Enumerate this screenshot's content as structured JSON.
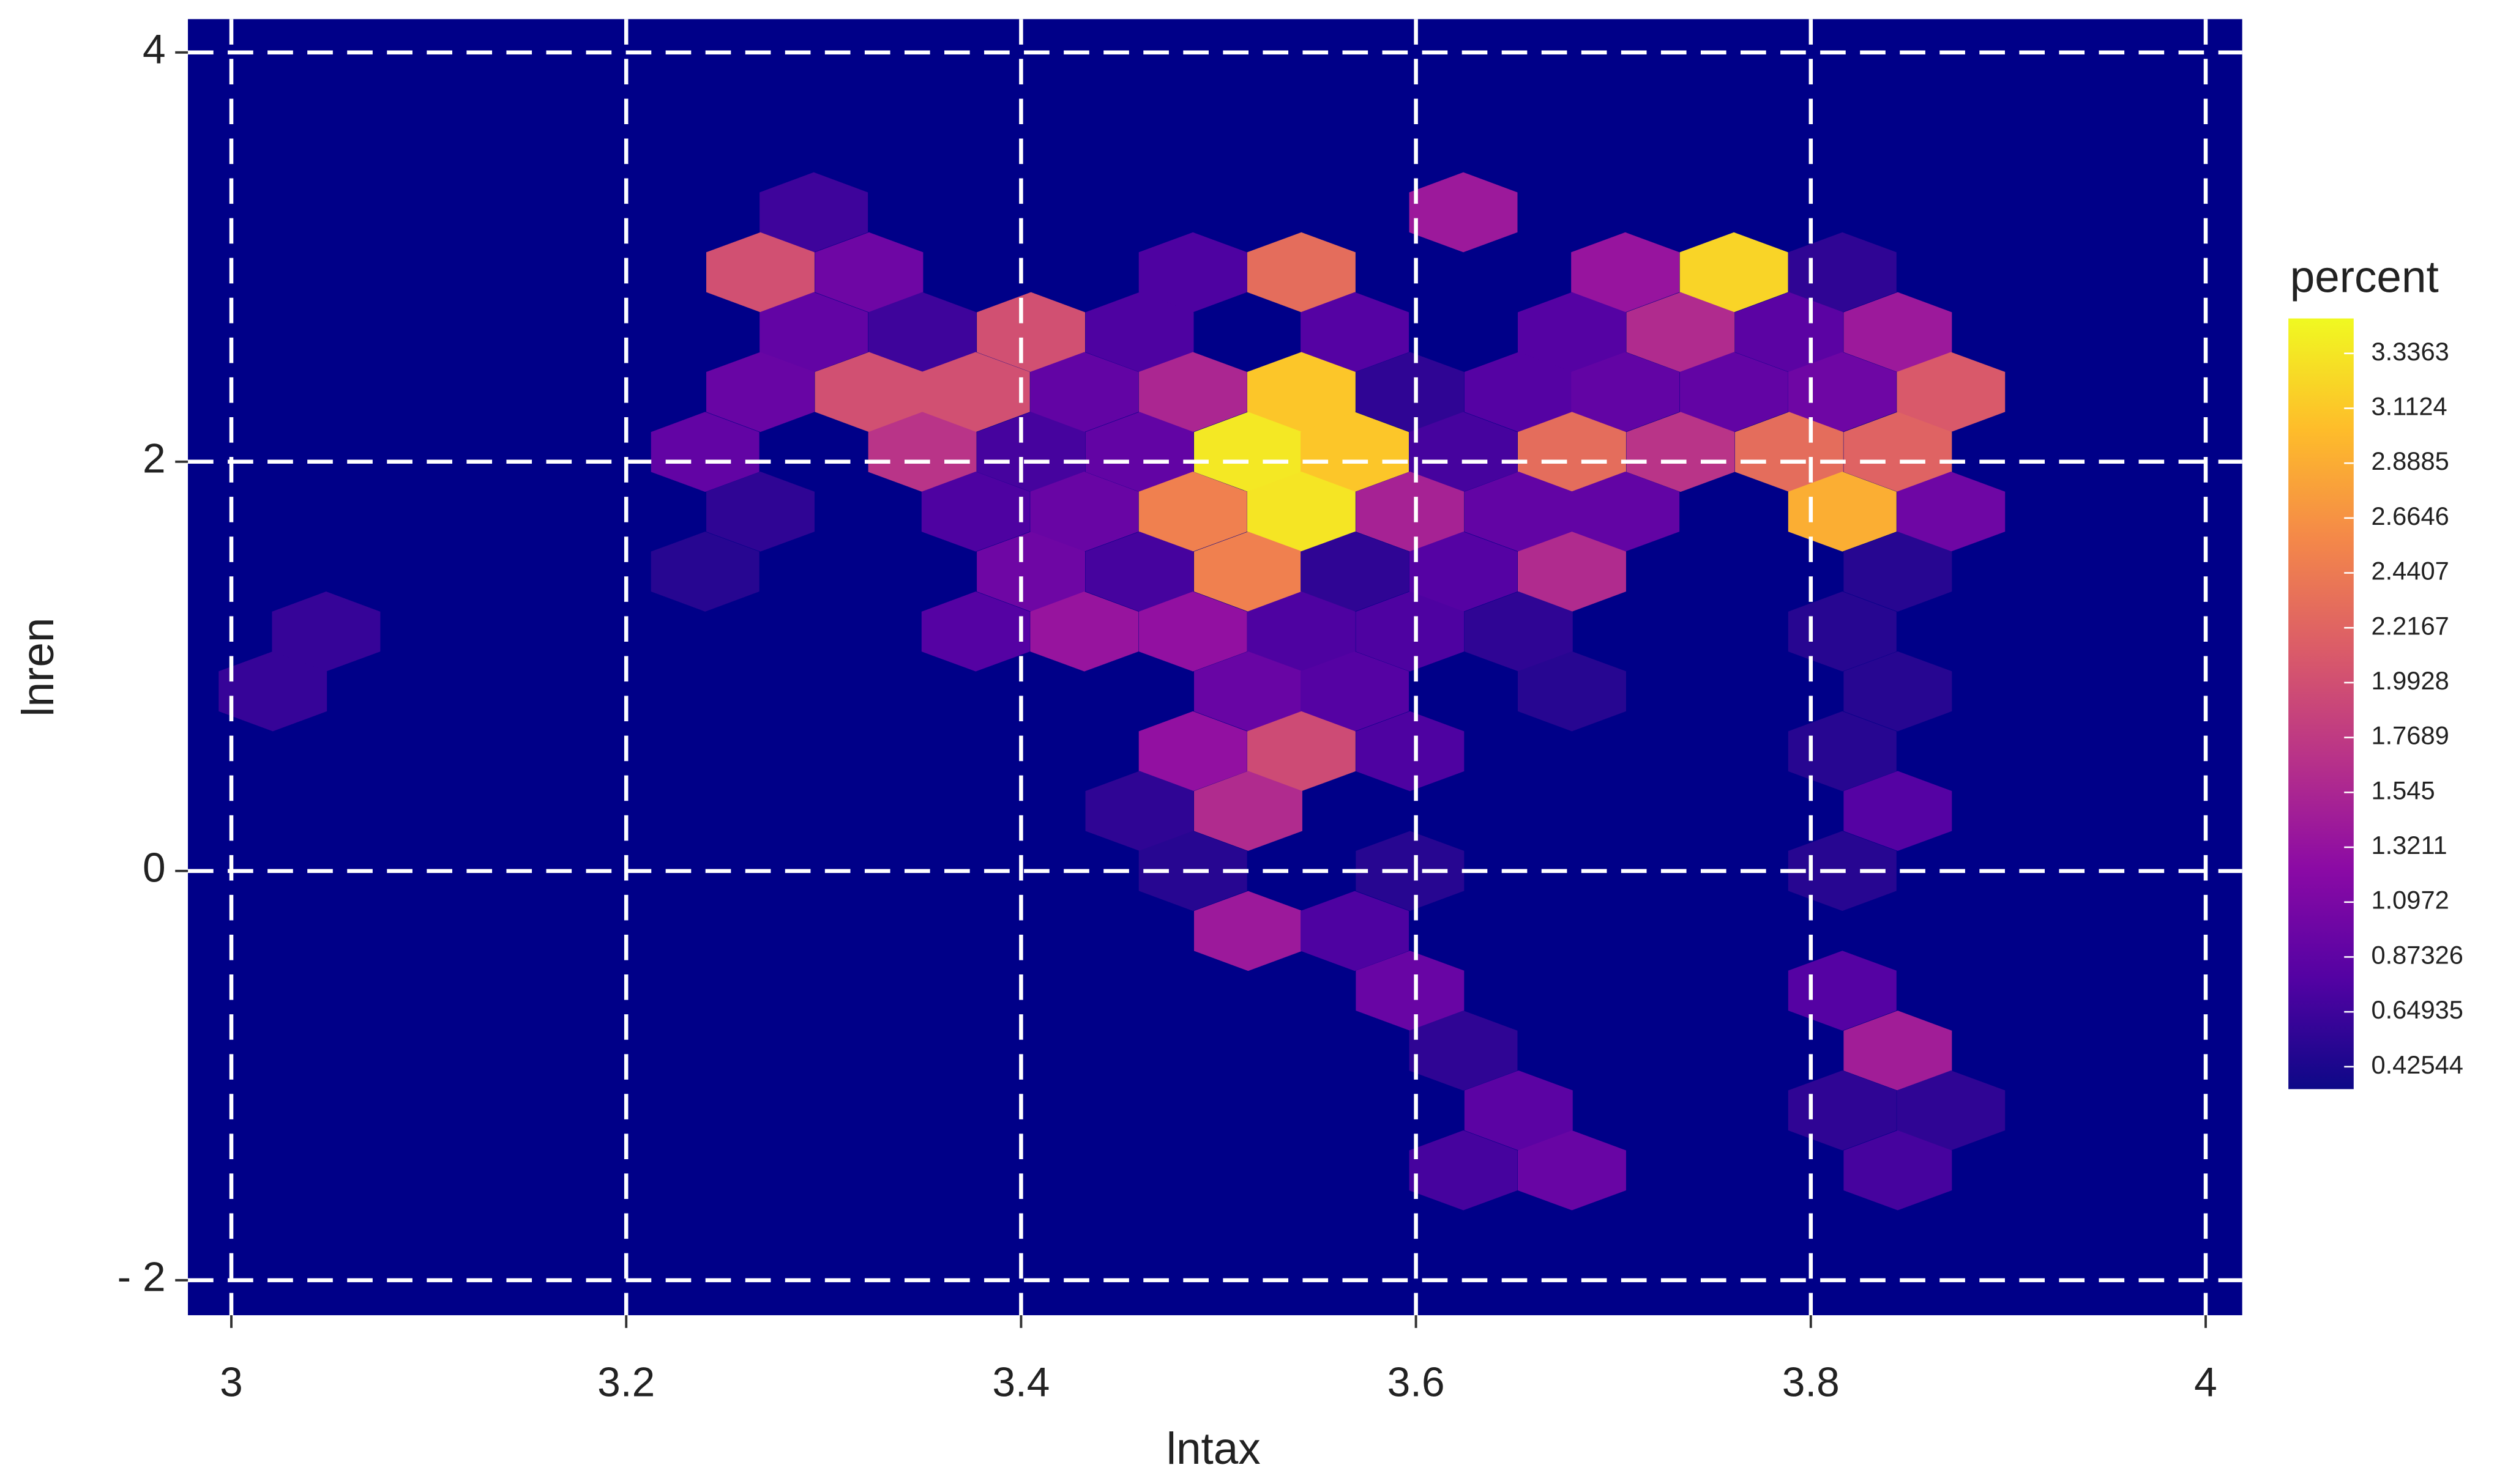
{
  "chart_data": {
    "type": "hexbin",
    "x_label": "lntax",
    "y_label": "lnren",
    "colorbar_title": "percent",
    "xlim": [
      2.978,
      4.0185
    ],
    "ylim": [
      -2.171,
      4.163
    ],
    "xticks": [
      3,
      3.2,
      3.4,
      3.6,
      3.8,
      4
    ],
    "yticks": [
      4,
      2,
      0,
      {
        "value": -2,
        "label": "- 2"
      }
    ],
    "grid": true,
    "background": "#000088",
    "grid_color": "#ffffff",
    "clim": [
      0.334,
      3.479
    ],
    "color_stops": [
      "#0d0887",
      "#5302a3",
      "#8b0aa5",
      "#b83289",
      "#db5c68",
      "#f48849",
      "#febd2a",
      "#f0f921"
    ],
    "colorbar_ticks": [
      3.3363,
      3.1124,
      2.8885,
      2.6646,
      2.4407,
      2.2167,
      1.9928,
      1.7689,
      1.545,
      1.3211,
      1.0972,
      0.87326,
      0.64935,
      0.42544
    ],
    "x": [
      3.295,
      3.624,
      3.268,
      3.323,
      3.487,
      3.542,
      3.706,
      3.761,
      3.816,
      3.295,
      3.35,
      3.405,
      3.46,
      3.569,
      3.679,
      3.734,
      3.789,
      3.844,
      3.268,
      3.323,
      3.377,
      3.432,
      3.487,
      3.542,
      3.597,
      3.652,
      3.706,
      3.761,
      3.816,
      3.871,
      3.24,
      3.35,
      3.405,
      3.46,
      3.515,
      3.569,
      3.624,
      3.679,
      3.734,
      3.789,
      3.844,
      3.268,
      3.377,
      3.432,
      3.487,
      3.542,
      3.597,
      3.652,
      3.706,
      3.816,
      3.871,
      3.24,
      3.405,
      3.46,
      3.515,
      3.569,
      3.624,
      3.679,
      3.844,
      3.048,
      3.377,
      3.432,
      3.487,
      3.542,
      3.597,
      3.652,
      3.816,
      3.021,
      3.515,
      3.569,
      3.679,
      3.844,
      3.487,
      3.542,
      3.597,
      3.816,
      3.46,
      3.515,
      3.844,
      3.487,
      3.597,
      3.816,
      3.515,
      3.569,
      3.597,
      3.816,
      3.624,
      3.844,
      3.652,
      3.816,
      3.871,
      3.624,
      3.679,
      3.844
    ],
    "y": [
      3.219,
      3.219,
      2.926,
      2.926,
      2.926,
      2.926,
      2.926,
      2.926,
      2.926,
      2.633,
      2.633,
      2.633,
      2.633,
      2.633,
      2.633,
      2.633,
      2.633,
      2.633,
      2.341,
      2.341,
      2.341,
      2.341,
      2.341,
      2.341,
      2.341,
      2.341,
      2.341,
      2.341,
      2.341,
      2.341,
      2.048,
      2.048,
      2.048,
      2.048,
      2.048,
      2.048,
      2.048,
      2.048,
      2.048,
      2.048,
      2.048,
      1.756,
      1.756,
      1.756,
      1.756,
      1.756,
      1.756,
      1.756,
      1.756,
      1.756,
      1.756,
      1.463,
      1.463,
      1.463,
      1.463,
      1.463,
      1.463,
      1.463,
      1.463,
      1.17,
      1.17,
      1.17,
      1.17,
      1.17,
      1.17,
      1.17,
      1.17,
      0.878,
      0.878,
      0.878,
      0.878,
      0.878,
      0.585,
      0.585,
      0.585,
      0.585,
      0.293,
      0.293,
      0.293,
      0,
      0,
      0,
      -0.293,
      -0.293,
      -0.585,
      -0.585,
      -0.878,
      -0.878,
      -1.17,
      -1.17,
      -1.17,
      -1.463,
      -1.463,
      -1.463
    ],
    "values": [
      0.65,
      1.4,
      2.0,
      1.0,
      0.75,
      2.3,
      1.35,
      3.2,
      0.55,
      0.9,
      0.65,
      2.0,
      0.75,
      0.8,
      0.8,
      1.6,
      0.85,
      1.4,
      0.95,
      2.0,
      2.0,
      0.9,
      1.55,
      3.1,
      0.55,
      0.8,
      0.9,
      0.9,
      1.0,
      2.1,
      0.9,
      1.7,
      0.7,
      0.9,
      3.35,
      3.1,
      0.7,
      2.3,
      1.7,
      2.3,
      2.2,
      0.55,
      0.75,
      0.95,
      2.5,
      3.33,
      1.5,
      0.9,
      0.9,
      2.9,
      1.0,
      0.5,
      1.0,
      0.7,
      2.5,
      0.55,
      0.8,
      1.6,
      0.5,
      0.6,
      0.8,
      1.35,
      1.3,
      0.75,
      0.75,
      0.55,
      0.5,
      0.6,
      0.95,
      0.8,
      0.5,
      0.5,
      1.3,
      1.95,
      0.75,
      0.5,
      0.55,
      1.6,
      0.8,
      0.5,
      0.5,
      0.5,
      1.4,
      0.75,
      0.95,
      0.8,
      0.55,
      1.45,
      0.85,
      0.55,
      0.55,
      0.7,
      0.95,
      0.7
    ]
  }
}
